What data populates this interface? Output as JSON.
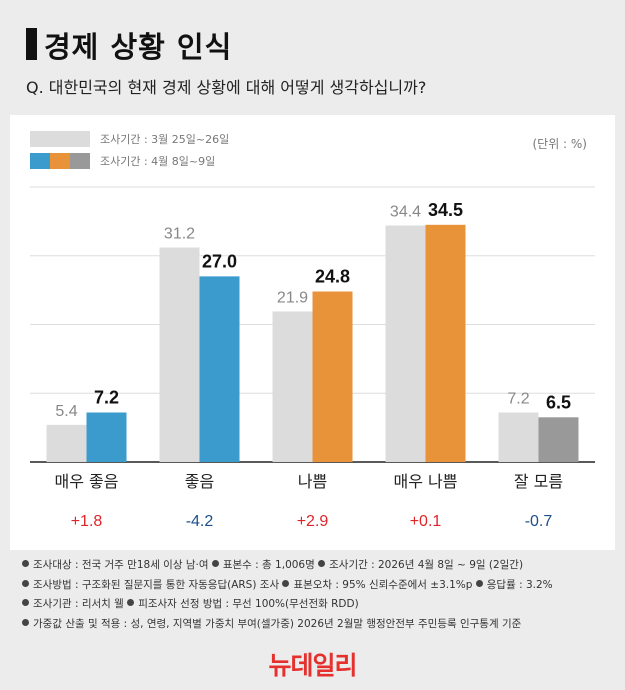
{
  "header": {
    "title": "경제 상황 인식",
    "question": "Q. 대한민국의 현재 경제 상황에 대해 어떻게 생각하십니까?"
  },
  "legend": {
    "previous": "조사기간 : 3월 25일~26일",
    "current": "조사기간 : 4월 8일~9일",
    "unit": "(단위 : %)"
  },
  "colors": {
    "previous": "#dcdcdc",
    "positive": "#3a9bcc",
    "negative": "#e8923a",
    "neutral": "#999999",
    "increase_text": "#e0252a",
    "decrease_text": "#1c4f8c"
  },
  "chart_data": {
    "type": "bar",
    "categories": [
      "매우 좋음",
      "좋음",
      "나쁨",
      "매우 나쁨",
      "잘 모름"
    ],
    "series": [
      {
        "name": "조사기간 : 3월 25일~26일",
        "values": [
          5.4,
          31.2,
          21.9,
          34.4,
          7.2
        ]
      },
      {
        "name": "조사기간 : 4월 8일~9일",
        "values": [
          7.2,
          27.0,
          24.8,
          34.5,
          6.5
        ]
      }
    ],
    "value_labels": {
      "previous": [
        "5.4",
        "31.2",
        "21.9",
        "34.4",
        "7.2"
      ],
      "current": [
        "7.2",
        "27.0",
        "24.8",
        "34.5",
        "6.5"
      ]
    },
    "current_color_keys": [
      "positive",
      "positive",
      "negative",
      "negative",
      "neutral"
    ],
    "changes": [
      "+1.8",
      "-4.2",
      "+2.9",
      "+0.1",
      "-0.7"
    ],
    "ylim": [
      0,
      40
    ],
    "grid": true,
    "xlabel": "",
    "ylabel": ""
  },
  "notes": [
    [
      "조사대상 : 전국 거주 만18세 이상 남·여",
      "표본수 : 총 1,006명",
      "조사기간 : 2026년 4월 8일 ~ 9일 (2일간)"
    ],
    [
      "조사방법 : 구조화된 질문지를 통한 자동응답(ARS) 조사",
      "표본오차 : 95% 신뢰수준에서 ±3.1%p",
      "응답률 : 3.2%"
    ],
    [
      "조사기관 : 리서치 웰",
      "피조사자 선정 방법 : 무선 100%(무선전화 RDD)"
    ],
    [
      "가중값 산출 및 적용 : 성, 연령, 지역별 가중치 부여(셀가중) 2026년 2월말 행정안전부 주민등록 인구통계 기준"
    ]
  ],
  "logo": "뉴데일리"
}
